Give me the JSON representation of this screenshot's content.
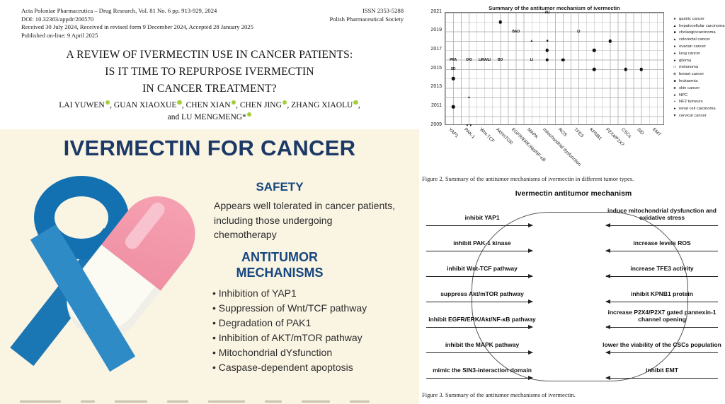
{
  "paper": {
    "header_left": [
      "Acta Poloniae Pharmaceutica – Drug Research, Vol. 81 No. 6 pp. 913-929, 2024",
      "DOI: 10.32383/appdr/200570",
      "Received 30 July 2024, Received in revised form 9 December 2024, Accepted 28 January 2025",
      "Published on-line: 9 April 2025"
    ],
    "header_right": [
      "ISSN 2353-5288",
      "Polish Pharmaceutical Society"
    ],
    "title_lines": [
      "A REVIEW OF IVERMECTIN USE IN CANCER PATIENTS:",
      "IS IT TIME TO REPURPOSE IVERMECTIN",
      "IN CANCER TREATMENT?"
    ],
    "authors_line1": [
      "LAI YUWEN",
      "GUAN XIAOXUE",
      "CHEN XIAN",
      "CHEN JING",
      "ZHANG XIAOLU"
    ],
    "authors_line2_prefix": "and ",
    "authors_line2_name": "LU MENGMENG*"
  },
  "infographic": {
    "title": "IVERMECTIN FOR CANCER",
    "safety_heading": "SAFETY",
    "safety_text": "Appears well tolerated in cancer patients, including those undergoing chemotherapy",
    "mechanisms_heading": "ANTITUMOR MECHANISMS",
    "mechanisms": [
      "Inhibition of YAP1",
      "Suppression of Wnt/TCF pathway",
      "Degradation of PAK1",
      "Inhibition of AKT/mTOR pathway",
      "Mitochondrial dYsfunction",
      "Caspase-dependent apoptosis"
    ],
    "colors": {
      "background": "#FAF4E3",
      "title_navy": "#1C3966",
      "heading_blue": "#17477F",
      "ribbon_blue": "#1371B1",
      "ribbon_blue_light": "#2F8BC6",
      "pill_pink": "#F08FA3",
      "orcid_green": "#A6CE39"
    }
  },
  "chart_data": {
    "type": "scatter",
    "title": "Summary of the antitumor mechanism of ivermectin",
    "x_categories": [
      "YAP1",
      "PAK-1",
      "Wnt-TCF",
      "Akt/mTOR",
      "EGFR/ERK/Akt/NF-κB",
      "MAPK",
      "mitochondrial dysfunction",
      "ROS",
      "TFE3",
      "KPNB1",
      "P2X4/P2X7",
      "CSCs",
      "SID",
      "EMT"
    ],
    "y_ticks": [
      2021,
      2019,
      2017,
      2015,
      2013,
      2011,
      2009
    ],
    "ylim": [
      2009,
      2021
    ],
    "grid": true,
    "legend_position": "right",
    "legend": [
      {
        "marker": "●",
        "label": "gastric cancer"
      },
      {
        "marker": "▲",
        "label": "hepatocellular carcinoma"
      },
      {
        "marker": "■",
        "label": "cholangiocarcinoma"
      },
      {
        "marker": "▲",
        "label": "colorectal cancer"
      },
      {
        "marker": "●",
        "label": "ovarian cancer"
      },
      {
        "marker": "●",
        "label": "lung cancer"
      },
      {
        "marker": "●",
        "label": "glioma"
      },
      {
        "marker": "□",
        "label": "melanoma"
      },
      {
        "marker": "⊕",
        "label": "breast cancer"
      },
      {
        "marker": "■",
        "label": "leukaemia"
      },
      {
        "marker": "♣",
        "label": "skin cancer"
      },
      {
        "marker": "♠",
        "label": "NPC"
      },
      {
        "marker": "▪",
        "label": "NF2 tumeurs"
      },
      {
        "marker": "●",
        "label": "renal cell carcinoma"
      },
      {
        "marker": "▼",
        "label": "cervical cancer"
      }
    ],
    "points": [
      {
        "x": "YAP1",
        "year": 2016,
        "label": "PRA"
      },
      {
        "x": "YAP1",
        "year": 2015,
        "label": "SD"
      },
      {
        "x": "YAP1",
        "year": 2014,
        "marker": "dot"
      },
      {
        "x": "YAP1",
        "year": 2011,
        "marker": "dot"
      },
      {
        "x": "PAK-1",
        "year": 2016,
        "label": "OKI"
      },
      {
        "x": "PAK-1",
        "year": 2012,
        "label": "▲"
      },
      {
        "x": "PAK-1",
        "year": 2009,
        "label": "▼▼"
      },
      {
        "x": "Wnt-TCF",
        "year": 2016,
        "label": "LIMA/LI"
      },
      {
        "x": "Akt/mTOR",
        "year": 2016,
        "label": "BO"
      },
      {
        "x": "Akt/mTOR",
        "year": 2020,
        "marker": "dot"
      },
      {
        "x": "EGFR/ERK/Akt/NF-κB",
        "year": 2019,
        "label": "BAO"
      },
      {
        "x": "MAPK",
        "year": 2016,
        "label": "LI"
      },
      {
        "x": "MAPK",
        "year": 2018,
        "label": "▲"
      },
      {
        "x": "mitochondrial dysfunction",
        "year": 2021,
        "label": "AU"
      },
      {
        "x": "mitochondrial dysfunction",
        "year": 2018,
        "label": "■"
      },
      {
        "x": "mitochondrial dysfunction",
        "year": 2017,
        "marker": "dot"
      },
      {
        "x": "mitochondrial dysfunction",
        "year": 2016,
        "marker": "dot"
      },
      {
        "x": "ROS",
        "year": 2016,
        "marker": "dot"
      },
      {
        "x": "TFE3",
        "year": 2019,
        "label": "LI"
      },
      {
        "x": "KPNB1",
        "year": 2017,
        "marker": "dot"
      },
      {
        "x": "KPNB1",
        "year": 2015,
        "marker": "dot"
      },
      {
        "x": "P2X4/P2X7",
        "year": 2018,
        "marker": "dot"
      },
      {
        "x": "CSCs",
        "year": 2015,
        "marker": "dot"
      },
      {
        "x": "SID",
        "year": 2015,
        "marker": "dot"
      }
    ]
  },
  "figure2": {
    "caption": "Figure 2. Summary of the antitumor mechanisms of ivermectin in different tumor types."
  },
  "figure3": {
    "title": "Ivermectin antitumor mechanism",
    "left_items": [
      "inhibit YAP1",
      "inhibit PAK-1 kinase",
      "inhibit Wnt-TCF pathway",
      "suppress Akt/mTOR pathway",
      "inhibit EGFR/ERK/Akt/NF-κB pathway",
      "inhibit the MAPK pathway",
      "mimic the SIN3-interaction domain"
    ],
    "right_items": [
      "induce mitochondrial dysfunction and oxidative stress",
      "increase levels ROS",
      "increase TFE3 activity",
      "inhibit KPNB1 protein",
      "increase P2X4/P2X7 gated pannexin-1 channel opening",
      "lower the viability of the CSCs population",
      "inhibit EMT"
    ],
    "caption": "Figure 3. Summary of the antitumor mechanisms of ivermectin."
  }
}
